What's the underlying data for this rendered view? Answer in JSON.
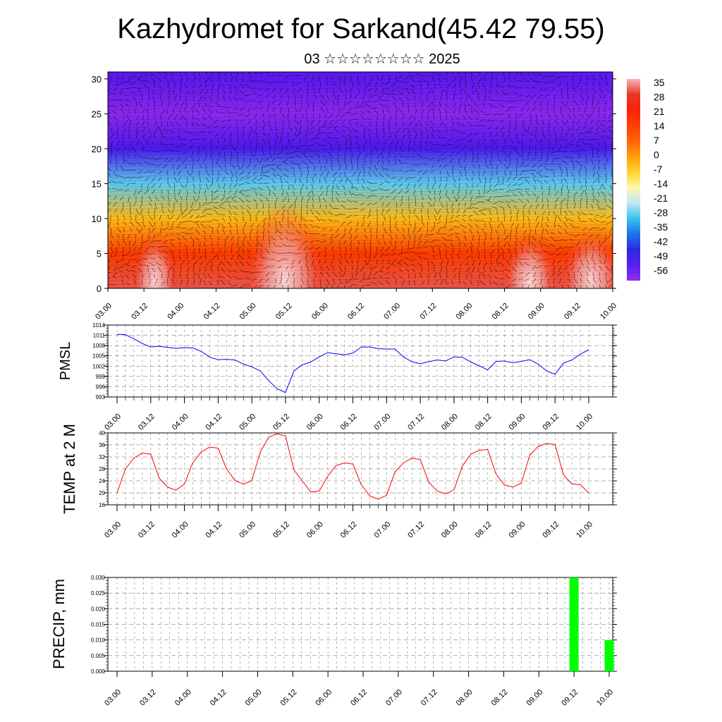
{
  "header": {
    "title": "Kazhydromet for Sarkand(45.42 79.55)",
    "subtitle": "03 ☆☆☆☆☆☆☆☆ 2025"
  },
  "chart_data": [
    {
      "type": "heatmap",
      "name": "temperature-cross-section",
      "title": "",
      "xlabel": "",
      "ylabel": "",
      "x_tick_labels": [
        "03.00",
        "03.12",
        "04.00",
        "04.12",
        "05.00",
        "05.12",
        "06.00",
        "06.12",
        "07.00",
        "07.12",
        "08.00",
        "08.12",
        "09.00",
        "09.12",
        "10.00"
      ],
      "y_ticks": [
        0,
        5,
        10,
        15,
        20,
        25,
        30
      ],
      "ylim": [
        0,
        31
      ],
      "colorbar": {
        "labels": [
          "35",
          "28",
          "21",
          "14",
          "7",
          "0",
          "-7",
          "-14",
          "-21",
          "-28",
          "-35",
          "-42",
          "-49",
          "-56"
        ],
        "colors": [
          "#f4b4b4",
          "#e83020",
          "#ff1a00",
          "#ff3a00",
          "#ff6000",
          "#ff9a00",
          "#ffd22a",
          "#fff8a8",
          "#bfe6f4",
          "#33c0ec",
          "#1870e8",
          "#2424e0",
          "#5418f0",
          "#8c28f0"
        ]
      },
      "levels": [
        0,
        5,
        10,
        15,
        20,
        25,
        30
      ],
      "level_temps": [
        30,
        14,
        -4,
        -26,
        -48,
        -56,
        -50
      ],
      "vectors": "wind barbs overlay"
    },
    {
      "type": "line",
      "name": "PMSL",
      "ylabel": "PMSL",
      "ylim": [
        993,
        1014
      ],
      "y_ticks": [
        993,
        996,
        999,
        1002,
        1005,
        1008,
        1011,
        1014
      ],
      "x_tick_labels": [
        "03.00",
        "03.12",
        "04.00",
        "04.12",
        "05.00",
        "05.12",
        "06.00",
        "06.12",
        "07.00",
        "07.12",
        "08.00",
        "08.12",
        "09.00",
        "09.12",
        "10.00"
      ],
      "color": "#0000ff",
      "values": [
        1011.3,
        1011.2,
        1010,
        1008.6,
        1007.6,
        1007.8,
        1007.5,
        1007.2,
        1007.4,
        1007.3,
        1006.3,
        1004.6,
        1003.9,
        1004,
        1003.8,
        1002.6,
        1001.8,
        1000.6,
        997.8,
        995.4,
        994.3,
        1000.6,
        1002.4,
        1003.2,
        1004.7,
        1005.9,
        1005.6,
        1005.3,
        1005.8,
        1007.6,
        1007.6,
        1007.1,
        1007,
        1007,
        1004.7,
        1003.3,
        1002.7,
        1003.3,
        1003.8,
        1003.5,
        1004.7,
        1004.6,
        1003.2,
        1002.1,
        1000.9,
        1003.4,
        1003.5,
        1003,
        1003.4,
        1003.9,
        1002.6,
        1000.6,
        999.6,
        1002.9,
        1003.8,
        1005.5,
        1006.8
      ]
    },
    {
      "type": "line",
      "name": "TEMP at 2 M",
      "ylabel": "TEMP at 2 M",
      "ylim": [
        16,
        40
      ],
      "y_ticks": [
        16,
        20,
        24,
        28,
        32,
        36,
        40
      ],
      "x_tick_labels": [
        "03.00",
        "03.12",
        "04.00",
        "04.12",
        "05.00",
        "05.12",
        "06.00",
        "06.12",
        "07.00",
        "07.12",
        "08.00",
        "08.12",
        "09.00",
        "09.12",
        "10.00"
      ],
      "color": "#ff0000",
      "values": [
        20,
        28,
        31.6,
        33.3,
        32.9,
        25,
        21.9,
        20.9,
        23,
        30.1,
        33.7,
        35.3,
        34.9,
        28,
        24.1,
        22.9,
        24.1,
        33.6,
        38.6,
        39.7,
        39,
        27.6,
        24,
        20.3,
        20.6,
        25.5,
        29.1,
        30,
        29.6,
        22.7,
        19,
        17.9,
        19.2,
        27,
        30,
        31.6,
        31.1,
        23.6,
        20.6,
        19.7,
        21,
        29,
        32.9,
        34.2,
        34.5,
        26.2,
        22.6,
        21.9,
        23.3,
        32.6,
        35.5,
        36.5,
        36.1,
        26,
        23,
        22.7,
        20
      ]
    },
    {
      "type": "bar",
      "name": "PRECIP, mm",
      "ylabel": "PRECIP, mm",
      "ylim": [
        0,
        0.03
      ],
      "y_tick_labels": [
        "0.000",
        "0.005",
        "0.010",
        "0.015",
        "0.020",
        "0.025",
        "0.030"
      ],
      "x_tick_labels": [
        "03.00",
        "03.12",
        "04.00",
        "04.12",
        "05.00",
        "05.12",
        "06.00",
        "06.12",
        "07.00",
        "07.12",
        "08.00",
        "08.12",
        "09.00",
        "09.12",
        "10.00"
      ],
      "color": "#00ff00",
      "bars": [
        {
          "x_index": 13,
          "value": 0.03
        },
        {
          "x_index": 14,
          "value": 0.01
        }
      ]
    }
  ]
}
